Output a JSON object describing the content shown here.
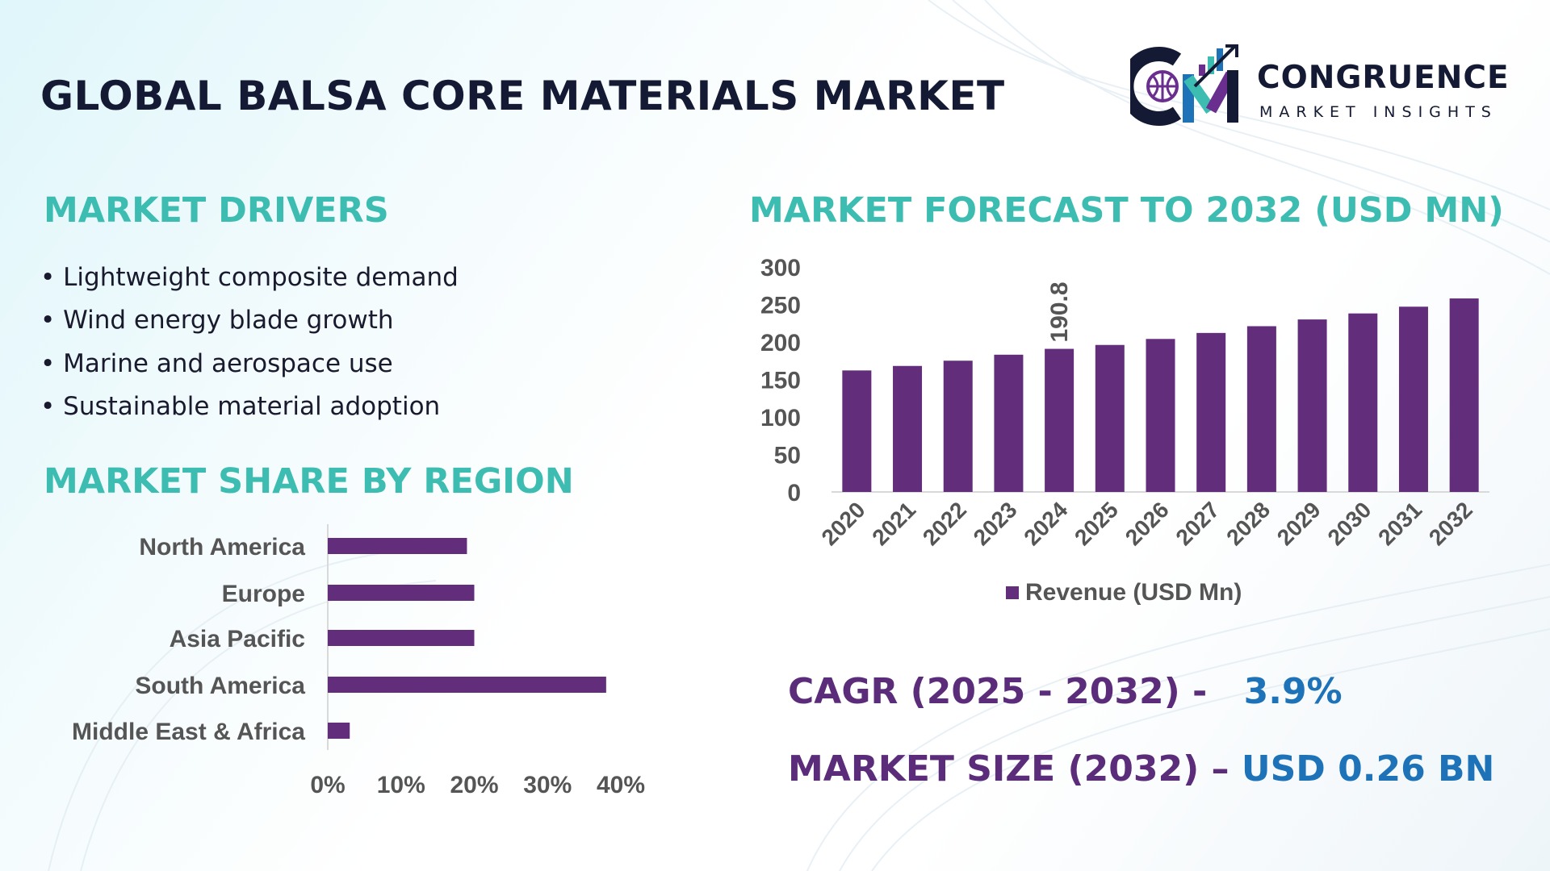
{
  "header": {
    "title": "GLOBAL BALSA CORE MATERIALS MARKET"
  },
  "logo": {
    "name": "CONGRUENCE",
    "tagline": "MARKET INSIGHTS",
    "monogram": "CM"
  },
  "drivers": {
    "heading": "MARKET DRIVERS",
    "items": [
      "Lightweight composite demand",
      "Wind energy blade growth",
      "Marine and aerospace use",
      "Sustainable material adoption"
    ]
  },
  "region": {
    "heading": "MARKET SHARE BY REGION"
  },
  "forecast": {
    "heading": "MARKET FORECAST TO 2032 (USD MN)"
  },
  "kpis": {
    "cagr_label": "CAGR (2025 - 2032) -",
    "cagr_value": "3.9%",
    "size_label": "MARKET SIZE (2032) –",
    "size_value": "USD 0.26 BN"
  },
  "colors": {
    "bar": "#622d7a",
    "heading": "#3dbdb1",
    "kpi_label": "#5b2c7a",
    "kpi_value": "#1e73b8"
  },
  "chart_data": [
    {
      "type": "bar",
      "orientation": "vertical",
      "categories": [
        "2020",
        "2021",
        "2022",
        "2023",
        "2024",
        "2025",
        "2026",
        "2027",
        "2028",
        "2029",
        "2030",
        "2031",
        "2032"
      ],
      "series": [
        {
          "name": "Revenue (USD Mn)",
          "values": [
            162,
            168,
            175,
            183,
            190.8,
            196,
            204,
            212,
            221,
            230,
            238,
            247,
            258
          ]
        }
      ],
      "data_labels": [
        {
          "category": "2024",
          "text": "190.8"
        }
      ],
      "yticks": [
        "0",
        "50",
        "100",
        "150",
        "200",
        "250",
        "300"
      ],
      "ylim": [
        0,
        300
      ],
      "grid": false,
      "legend": "bottom"
    },
    {
      "type": "bar",
      "orientation": "horizontal",
      "categories": [
        "North America",
        "Europe",
        "Asia Pacific",
        "South America",
        "Middle East & Africa"
      ],
      "values": [
        19,
        20,
        20,
        38,
        3
      ],
      "xticks": [
        "0%",
        "10%",
        "20%",
        "30%",
        "40%"
      ],
      "xlim": [
        0,
        40
      ],
      "grid": false
    }
  ]
}
